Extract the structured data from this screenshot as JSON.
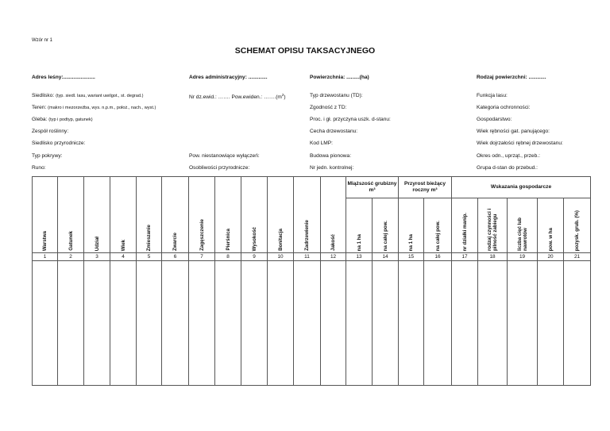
{
  "wzor": "Wzór nr 1",
  "title": "SCHEMAT OPISU TAKSACYJNEGO",
  "addr": [
    "Adres leśny:......................",
    "Adres administracyjny: .............",
    "Powierzchnia: .........(ha)",
    "Rodzaj powierzchni: ............"
  ],
  "col1": [
    {
      "label": "Siedlisko: ",
      "note": "(typ. siedl. lasu, wariant uwilgot., st. degrad.)"
    },
    {
      "label": "Teren: ",
      "note": "(makro i mezorzeźba, wys. n.p.m., położ., nach., wyst.)"
    },
    {
      "label": "Gleba: ",
      "note": "(typ i podtyp, gatunek)"
    },
    {
      "label": "Zespół roślinny:",
      "note": ""
    },
    {
      "label": "Siedlisko przyrodnicze:",
      "note": ""
    },
    {
      "label": "Typ pokrywy:",
      "note": ""
    },
    {
      "label": "Runo:",
      "note": ""
    }
  ],
  "col2": {
    "nr_dz": "Nr dz.ewid.: ……. Pow.ewiden.: …….(m",
    "sup": "2",
    "close": ")",
    "row6": "Pow. niestanowiące wyłączeń:",
    "row7": "Osobliwości przyrodnicze:"
  },
  "col3": [
    "Typ drzewostanu (TD):",
    "Zgodność z TD:",
    "Proc. i gł. przyczyna uszk.  d-stanu:",
    "Cecha drzewostanu:",
    "Kod LMP:",
    "Budowa pionowa:",
    "Nr jedn. kontrolnej:"
  ],
  "col4": [
    "Funkcja lasu:",
    "Kategoria ochronności:",
    "Gospodarstwo:",
    "Wiek rębności gat. panującego:",
    "Wiek dojrzałości rębnej drzewostanu:",
    "Okres odn., uprząt., przeb.:",
    "Grupa d-stan do przebud.:"
  ],
  "table": {
    "single_cols": [
      "Warstwa",
      "Gatunek",
      "Udział",
      "Wiek",
      "Zmieszanie",
      "Zwarcie",
      "Zagęszczenie",
      "Pierśnica",
      "Wysokość",
      "Bonitacja",
      "Zadrzewienie",
      "Jakość"
    ],
    "groups": [
      "Miąższość grubizny m³",
      "Przyrost bieżący roczny m³",
      "Wskazania gospodarcze"
    ],
    "sub_miazszosc": [
      "na 1 ha",
      "na całej pow."
    ],
    "sub_przyrost": [
      "na 1 ha",
      "na całej pow."
    ],
    "sub_wskazania": [
      "nr działki manip.",
      "rodzaj czynności i pilność zabiegu",
      "liczba cięć lub nawrotów",
      "pow. w ha",
      "pozysk. grub. (%)"
    ],
    "numbers": [
      "1",
      "2",
      "3",
      "4",
      "5",
      "6",
      "7",
      "8",
      "9",
      "10",
      "11",
      "12",
      "13",
      "14",
      "15",
      "16",
      "17",
      "18",
      "19",
      "20",
      "21"
    ]
  }
}
